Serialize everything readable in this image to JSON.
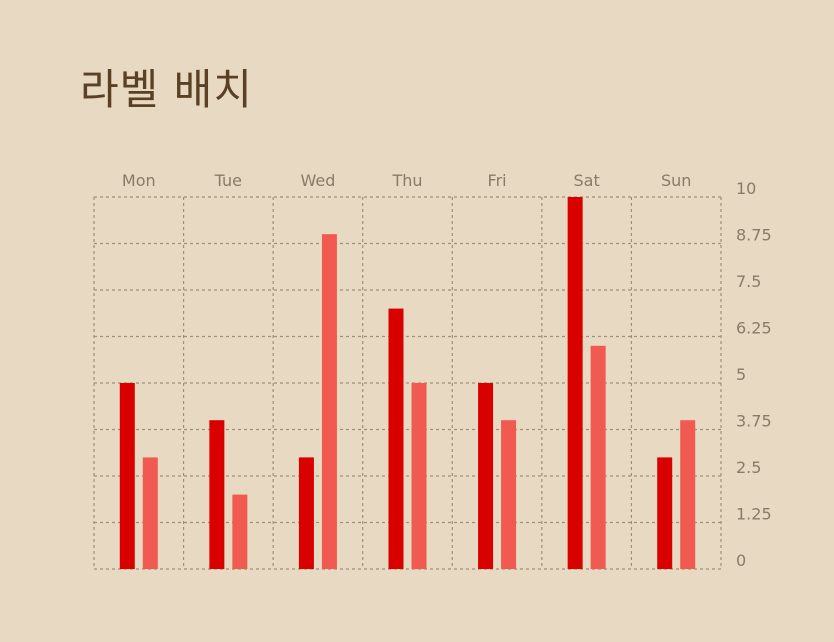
{
  "title": "라벨 배치",
  "colors": {
    "background": "#e8d9c2",
    "series1": "#d90000",
    "series2": "#f05a50",
    "grid": "#a08f7a",
    "label": "#8a7a68",
    "title": "#5a4024"
  },
  "chart_data": {
    "type": "bar",
    "title": "라벨 배치",
    "categories": [
      "Mon",
      "Tue",
      "Wed",
      "Thu",
      "Fri",
      "Sat",
      "Sun"
    ],
    "series": [
      {
        "values": [
          5,
          4,
          3,
          7,
          5,
          10,
          3
        ]
      },
      {
        "values": [
          3,
          2,
          9,
          5,
          4,
          6,
          4
        ]
      }
    ],
    "ylim": [
      0,
      10
    ],
    "yticks": [
      "0",
      "1.25",
      "2.5",
      "3.75",
      "5",
      "6.25",
      "7.5",
      "8.75",
      "10"
    ],
    "xaxis_position": "top",
    "yaxis_position": "right",
    "grid": true,
    "legend": "none"
  }
}
